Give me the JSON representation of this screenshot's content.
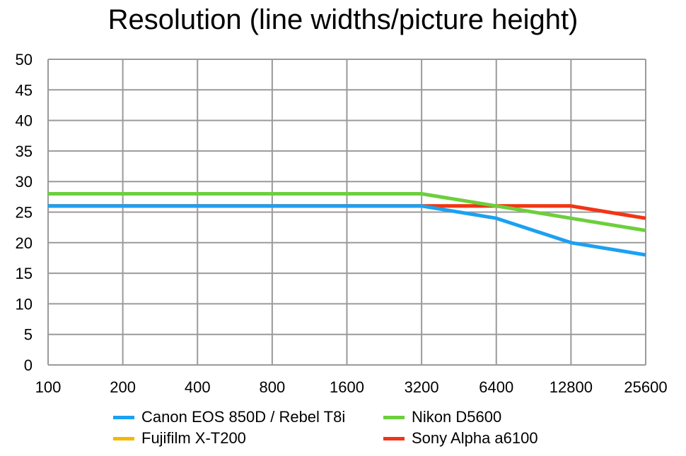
{
  "chart_data": {
    "type": "line",
    "title": "Resolution (line widths/picture height)",
    "xlabel": "",
    "ylabel": "",
    "categories": [
      "100",
      "200",
      "400",
      "800",
      "1600",
      "3200",
      "6400",
      "12800",
      "25600"
    ],
    "yticks": [
      "0",
      "5",
      "10",
      "15",
      "20",
      "25",
      "30",
      "35",
      "40",
      "45",
      "50"
    ],
    "ylim": [
      0,
      50
    ],
    "grid": true,
    "legend_position": "bottom",
    "series": [
      {
        "name": "Fujifilm X-T200",
        "color": "#f5b800",
        "values": [
          26,
          26,
          26,
          26,
          26,
          26,
          26,
          26,
          24
        ]
      },
      {
        "name": "Sony Alpha a6100",
        "color": "#f23418",
        "values": [
          26,
          26,
          26,
          26,
          26,
          26,
          26,
          26,
          24
        ]
      },
      {
        "name": "Canon EOS 850D / Rebel T8i",
        "color": "#1ba1f2",
        "values": [
          26,
          26,
          26,
          26,
          26,
          26,
          24,
          20,
          18
        ]
      },
      {
        "name": "Nikon D5600",
        "color": "#6ccf3c",
        "values": [
          28,
          28,
          28,
          28,
          28,
          28,
          26,
          24,
          22
        ]
      }
    ]
  }
}
